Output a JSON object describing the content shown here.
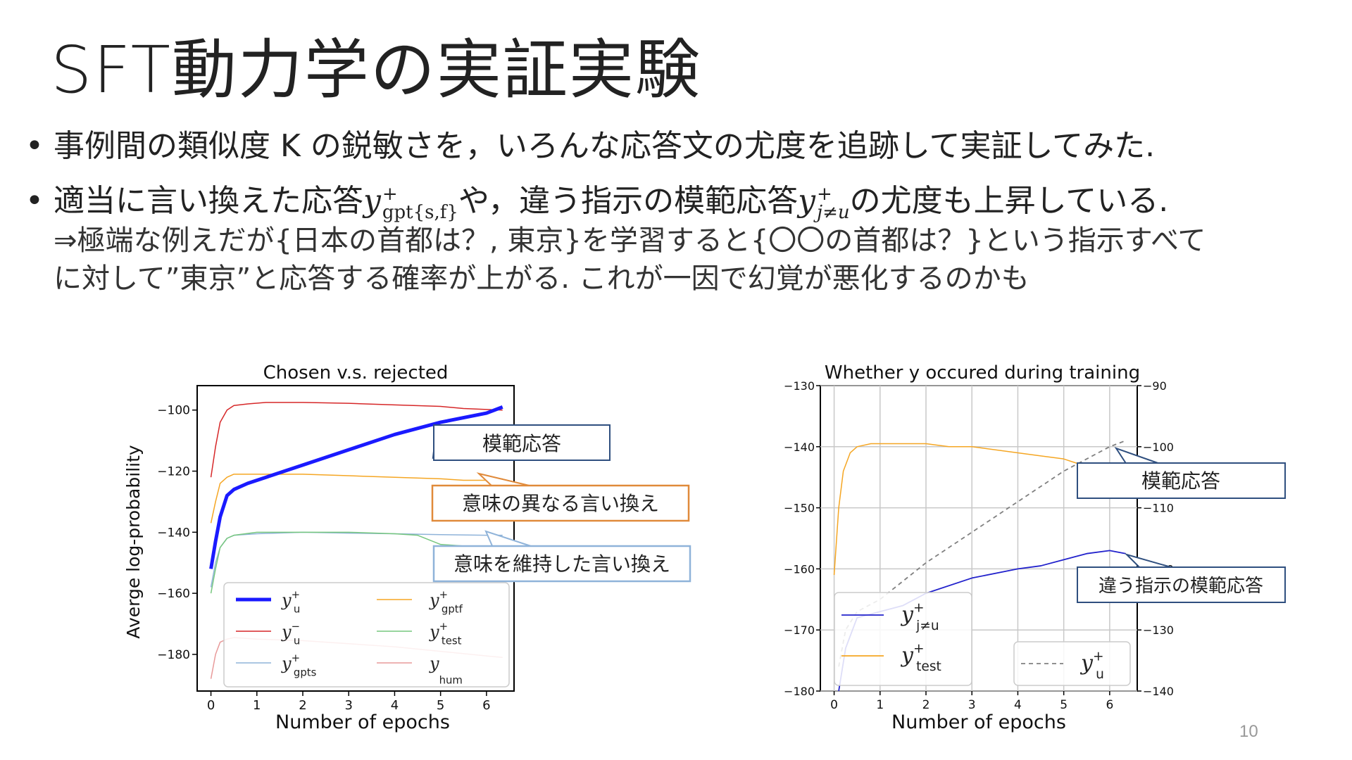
{
  "slide": {
    "title": "SFT動力学の実証実験",
    "bullet1": "事例間の類似度 K の鋭敏さを，いろんな応答文の尤度を追跡して実証してみた.",
    "bullet2_a": "適当に言い換えた応答",
    "bullet2_var1": "y",
    "bullet2_sup1": "+",
    "bullet2_sub1": "gpt{s,f}",
    "bullet2_b": "や，違う指示の模範応答",
    "bullet2_var2": "y",
    "bullet2_sup2": "+",
    "bullet2_sub2": "j≠u",
    "bullet2_c": "の尤度も上昇している.",
    "sub_line1": "⇒極端な例えだが{日本の首都は？, 東京}を学習すると{〇〇の首都は？}という指示すべて",
    "sub_line2": "に対して”東京”と応答する確率が上がる. これが一因で幻覚が悪化するのかも",
    "page_number": "10"
  },
  "callouts": {
    "left_model": "模範応答",
    "left_different": "意味の異なる言い換え",
    "left_keep": "意味を維持した言い換え",
    "right_model": "模範応答",
    "right_other": "違う指示の模範応答"
  },
  "colors": {
    "blue_thick": "#1a1aff",
    "red": "#d62728",
    "orange": "#f5a623",
    "light_orange": "#f7c08a",
    "green": "#77c77f",
    "light_blue": "#8fb3d9",
    "pink": "#e89a9a",
    "navy": "#2f4f7f",
    "callout_orange": "#e08a3a",
    "callout_blue": "#8fb3d9"
  },
  "chart_data": [
    {
      "type": "line",
      "title": "Chosen v.s. rejected",
      "xlabel": "Number of epochs",
      "ylabel": "Averge log-probability",
      "xlim": [
        -0.3,
        6.6
      ],
      "ylim": [
        -192,
        -92
      ],
      "xticks": [
        0,
        1,
        2,
        3,
        4,
        5,
        6
      ],
      "yticks": [
        -100,
        -120,
        -140,
        -160,
        -180
      ],
      "grid": false,
      "legend_position": "lower-center",
      "series": [
        {
          "name": "y_u^+",
          "color": "#1a1aff",
          "width": 5,
          "x": [
            0,
            0.1,
            0.2,
            0.35,
            0.5,
            0.8,
            1.2,
            2,
            3,
            4,
            5,
            6,
            6.35
          ],
          "y": [
            -152,
            -143,
            -135,
            -128,
            -126,
            -124,
            -122,
            -118,
            -113,
            -108,
            -104,
            -101,
            -99
          ]
        },
        {
          "name": "y_u^-",
          "color": "#d62728",
          "width": 1.5,
          "x": [
            0,
            0.1,
            0.2,
            0.35,
            0.5,
            0.8,
            1.2,
            2,
            3,
            4,
            5,
            5.5,
            6,
            6.35
          ],
          "y": [
            -122,
            -112,
            -104,
            -100,
            -98.5,
            -98,
            -97.5,
            -97.5,
            -97.8,
            -98.3,
            -98.8,
            -99.5,
            -99.8,
            -100
          ]
        },
        {
          "name": "y_gptf^+",
          "color": "#f5a623",
          "width": 1.5,
          "x": [
            0,
            0.1,
            0.2,
            0.35,
            0.5,
            1,
            2,
            3,
            4,
            5,
            5.5,
            6,
            6.35
          ],
          "y": [
            -137,
            -130,
            -124,
            -122,
            -121,
            -121,
            -121,
            -121.5,
            -122,
            -122.5,
            -123,
            -123,
            -122.5
          ]
        },
        {
          "name": "y_test^+",
          "color": "#77c77f",
          "width": 1.5,
          "x": [
            0,
            0.1,
            0.2,
            0.35,
            0.5,
            1,
            2,
            3,
            4,
            4.5,
            5,
            5.5,
            6,
            6.35
          ],
          "y": [
            -160,
            -152,
            -145,
            -142,
            -141,
            -140,
            -140,
            -140,
            -140.5,
            -141,
            -144,
            -144.5,
            -144.5,
            -144.5
          ]
        },
        {
          "name": "y_gpts^+",
          "color": "#8fb3d9",
          "width": 1.5,
          "x": [
            0,
            0.1,
            0.2,
            0.35,
            0.5,
            1,
            2,
            3,
            4,
            5,
            6,
            6.35
          ],
          "y": [
            -158,
            -150,
            -145,
            -142,
            -141,
            -140.5,
            -140,
            -140.3,
            -140.5,
            -140.8,
            -141,
            -141
          ]
        },
        {
          "name": "y_hum",
          "color": "#e89a9a",
          "width": 1.5,
          "x": [
            0,
            0.1,
            0.2,
            0.35,
            0.5,
            1,
            2,
            3,
            4,
            5,
            6,
            6.35
          ],
          "y": [
            -188,
            -180,
            -176,
            -175,
            -174.5,
            -175,
            -175.5,
            -176.5,
            -177.5,
            -179,
            -180.5,
            -181
          ]
        }
      ],
      "legend": [
        {
          "base": "y",
          "sup": "+",
          "sub": "u",
          "color": "#1a1aff",
          "width": 5
        },
        {
          "base": "y",
          "sup": "+",
          "sub": "gptf",
          "color": "#f5a623",
          "width": 1.5
        },
        {
          "base": "y",
          "sup": "−",
          "sub": "u",
          "color": "#d62728",
          "width": 1.5
        },
        {
          "base": "y",
          "sup": "+",
          "sub": "test",
          "color": "#77c77f",
          "width": 1.5
        },
        {
          "base": "y",
          "sup": "+",
          "sub": "gpts",
          "color": "#8fb3d9",
          "width": 1.5
        },
        {
          "base": "y",
          "sup": "",
          "sub": "hum",
          "color": "#e89a9a",
          "width": 1.5
        }
      ]
    },
    {
      "type": "line",
      "title": "Whether y occured during training",
      "xlabel": "Number of epochs",
      "ylabel": "",
      "xlim": [
        -0.3,
        6.6
      ],
      "ylim": [
        -180,
        -130
      ],
      "ylim_right": [
        -140,
        -90
      ],
      "xticks": [
        0,
        1,
        2,
        3,
        4,
        5,
        6
      ],
      "yticks": [
        -130,
        -140,
        -150,
        -160,
        -170,
        -180
      ],
      "yticks_right": [
        -90,
        -100,
        -110,
        -120,
        -130,
        -140
      ],
      "grid": true,
      "legend_position": "lower-left",
      "series": [
        {
          "name": "y_test^+",
          "axis": "left",
          "color": "#f5a623",
          "width": 1.5,
          "dash": "",
          "x": [
            0,
            0.1,
            0.2,
            0.35,
            0.5,
            0.8,
            1,
            2,
            2.5,
            3,
            4,
            4.5,
            5,
            5.4
          ],
          "y": [
            -161,
            -150,
            -144,
            -141,
            -140,
            -139.5,
            -139.5,
            -139.5,
            -140,
            -140,
            -141,
            -141.5,
            -142,
            -143
          ]
        },
        {
          "name": "y_{j≠u}^+",
          "axis": "right",
          "color": "#2222cc",
          "width": 1.8,
          "dash": "",
          "x": [
            0.1,
            0.25,
            0.5,
            1,
            1.5,
            2,
            3,
            4,
            4.5,
            5,
            5.5,
            6,
            6.35
          ],
          "y": [
            -140,
            -133,
            -128,
            -127,
            -126,
            -124,
            -121.5,
            -120,
            -119.5,
            -118.5,
            -117.5,
            -117,
            -117.5
          ]
        },
        {
          "name": "y_u^+",
          "axis": "right",
          "color": "#808080",
          "width": 1.8,
          "dash": "6,5",
          "x": [
            0.1,
            0.25,
            0.5,
            1,
            1.5,
            2,
            3,
            4,
            5,
            6,
            6.35
          ],
          "y": [
            -136,
            -130,
            -127,
            -125,
            -122,
            -119,
            -114,
            -109,
            -104,
            -100,
            -99
          ]
        }
      ],
      "legend": [
        {
          "base": "y",
          "sup": "+",
          "sub": "j≠u",
          "color": "#2222cc",
          "dash": ""
        },
        {
          "base": "y",
          "sup": "+",
          "sub": "test",
          "color": "#f5a623",
          "dash": ""
        },
        {
          "base": "y",
          "sup": "+",
          "sub": "u",
          "color": "#808080",
          "dash": "6,5"
        }
      ]
    }
  ]
}
